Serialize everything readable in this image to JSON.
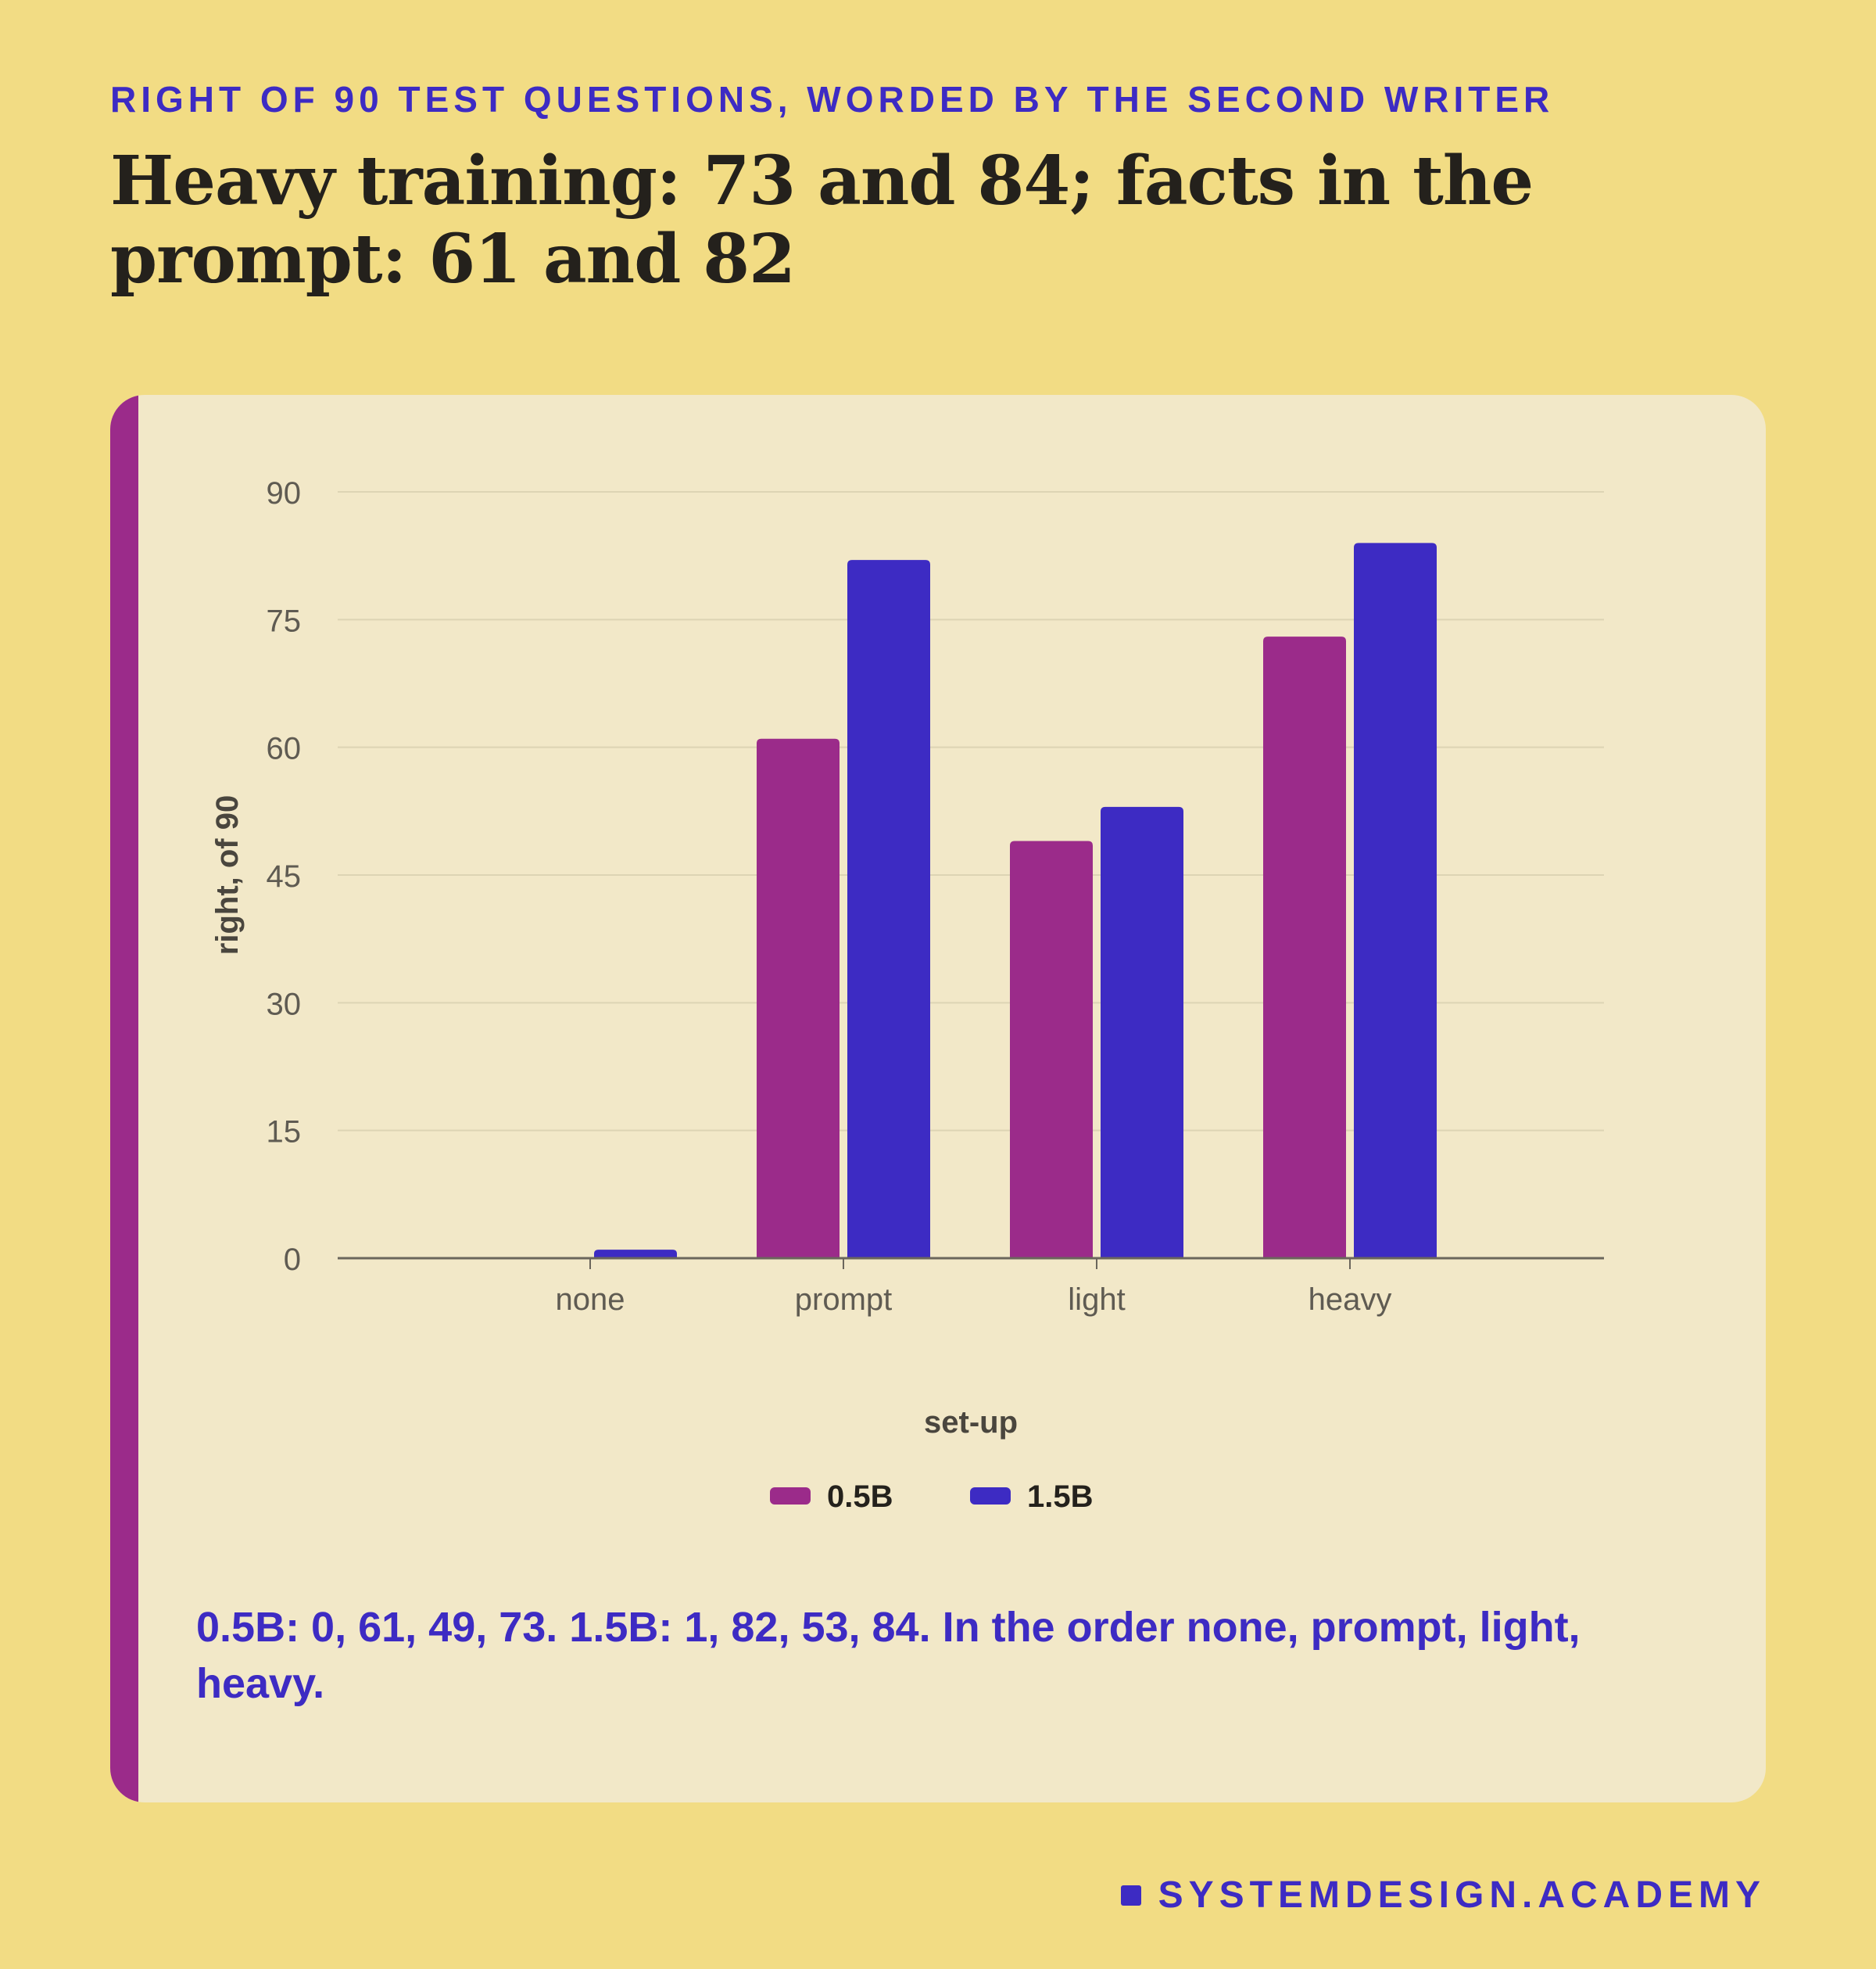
{
  "header": {
    "eyebrow": "RIGHT OF 90 TEST QUESTIONS, WORDED BY THE SECOND WRITER",
    "headline": "Heavy training: 73 and 84; facts in the prompt: 61 and 82"
  },
  "colors": {
    "background": "#f2dc84",
    "card": "#f2e8c8",
    "accent": "#9b2b8a",
    "series_0_5b": "#9b2b8a",
    "series_1_5b": "#3d2bc3",
    "headline": "#24211c",
    "brand": "#3d2bc3"
  },
  "chart_data": {
    "type": "bar",
    "categories": [
      "none",
      "prompt",
      "light",
      "heavy"
    ],
    "series": [
      {
        "name": "0.5B",
        "values": [
          0,
          61,
          49,
          73
        ],
        "color": "#9b2b8a"
      },
      {
        "name": "1.5B",
        "values": [
          1,
          82,
          53,
          84
        ],
        "color": "#3d2bc3"
      }
    ],
    "xlabel": "set-up",
    "ylabel": "right, of 90",
    "ylim": [
      0,
      90
    ],
    "yticks": [
      0,
      15,
      30,
      45,
      60,
      75,
      90
    ],
    "grid": true,
    "legend_position": "bottom-center"
  },
  "caption": "0.5B: 0, 61, 49, 73. 1.5B: 1, 82, 53, 84. In the order none, prompt, light, heavy.",
  "brand": {
    "label": "SYSTEMDESIGN.ACADEMY"
  }
}
